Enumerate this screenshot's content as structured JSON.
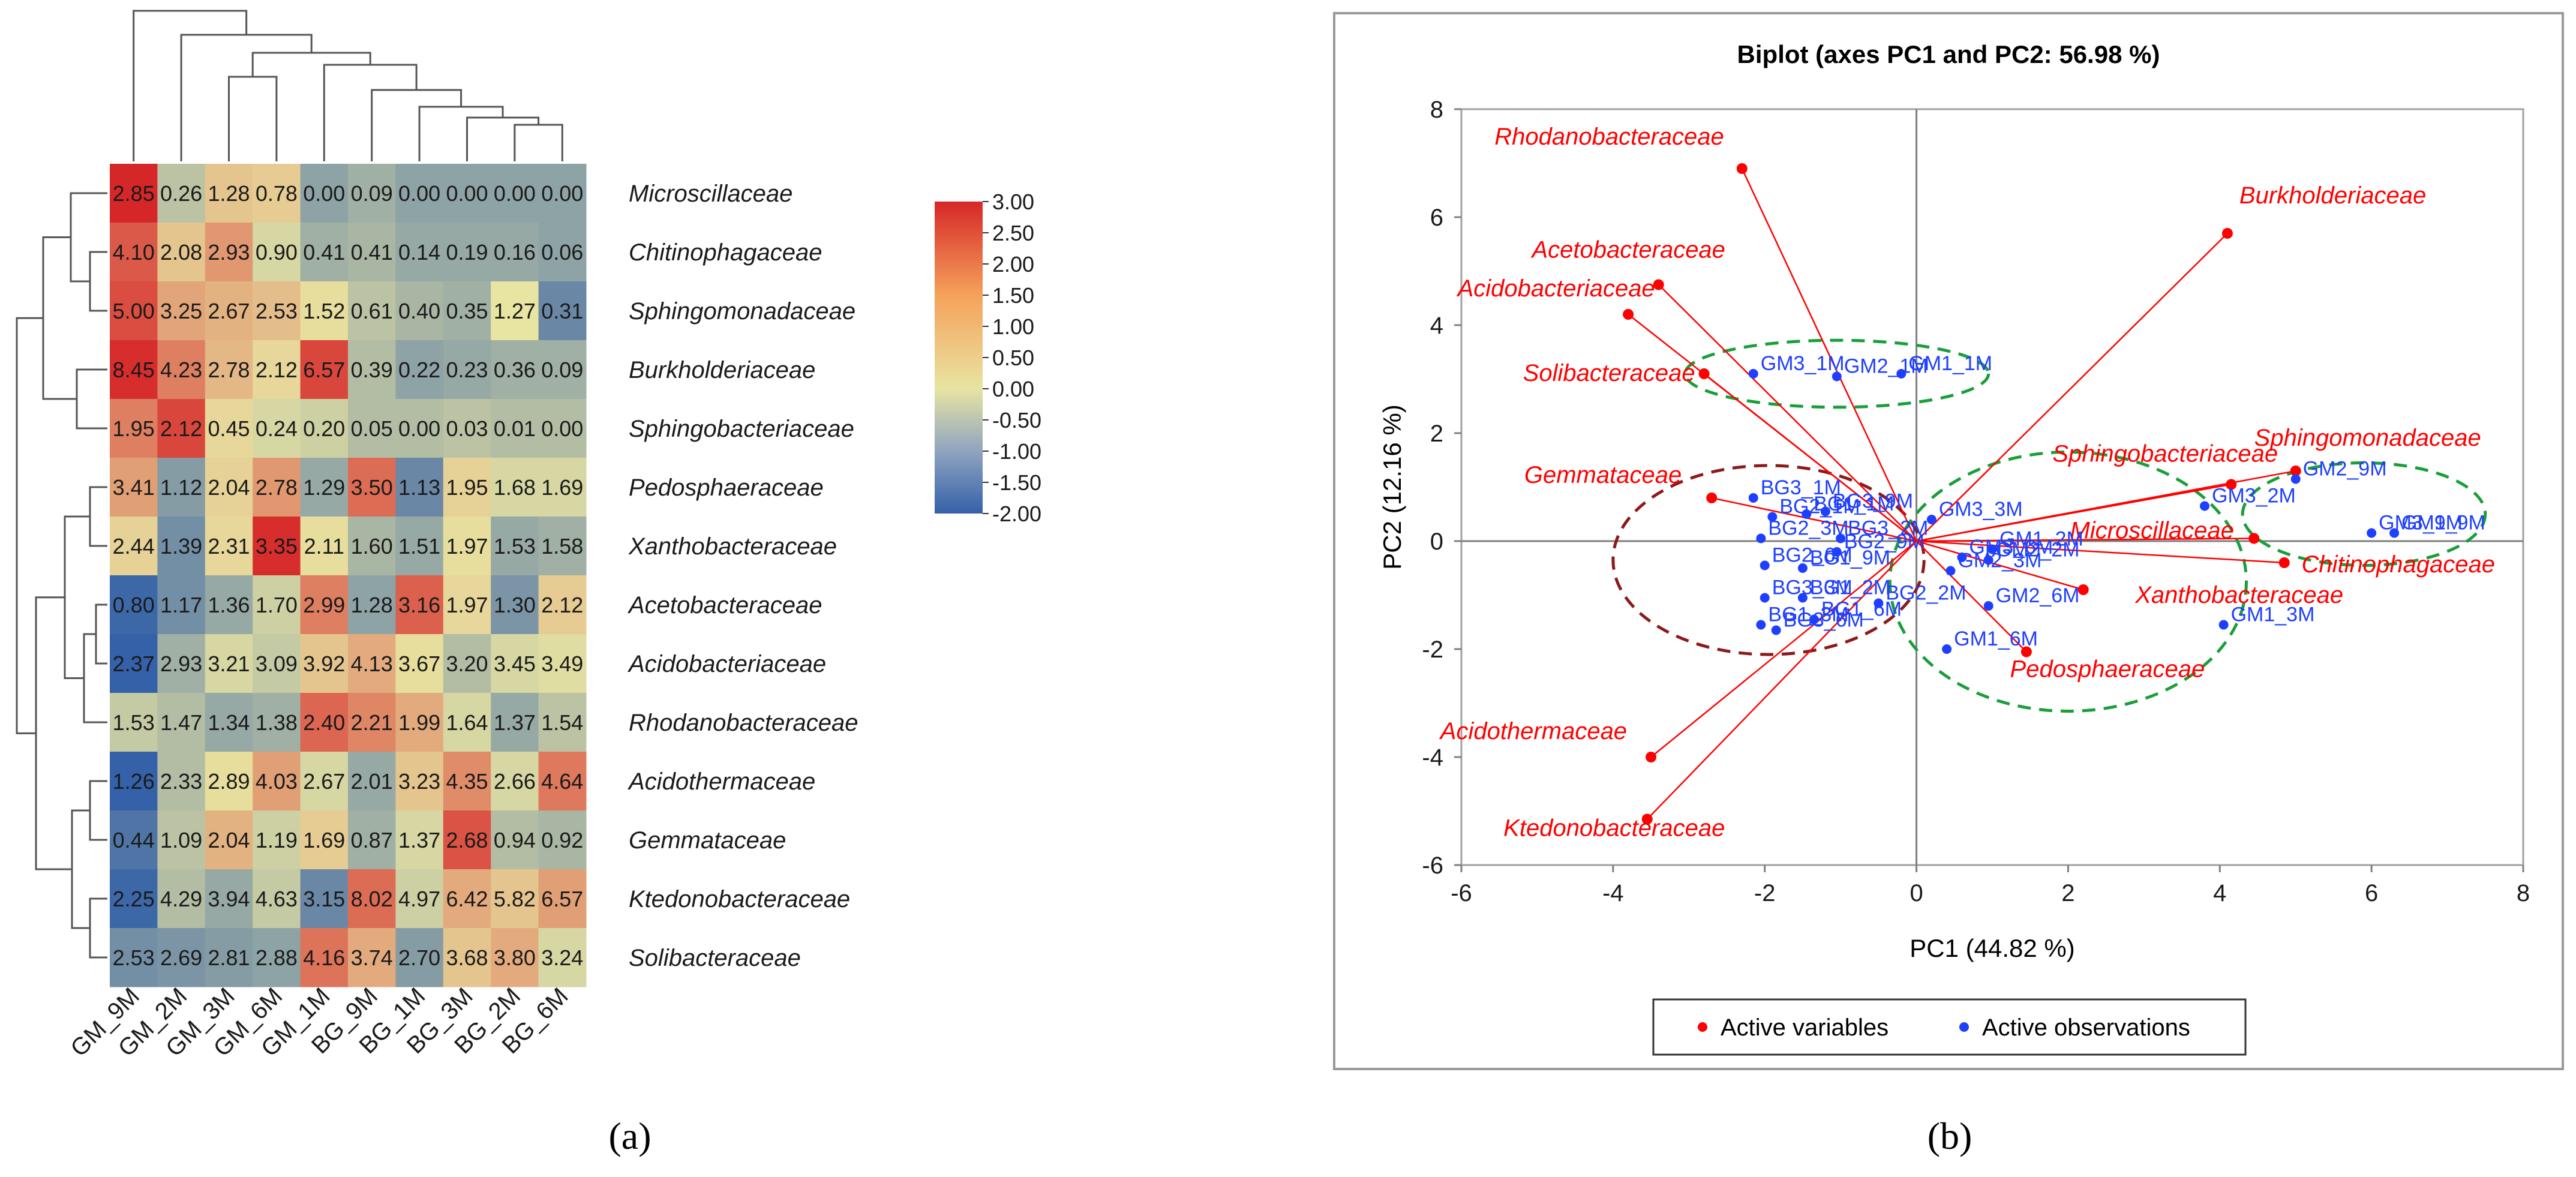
{
  "panel_labels": {
    "a": "(a)",
    "b": "(b)"
  },
  "colors": {
    "active_variable": "#ff0000",
    "active_observation": "#1f3fff",
    "green_ellipse": "#1a9e3a",
    "brown_ellipse": "#8b1a1a"
  },
  "chart_data": [
    {
      "type": "heatmap",
      "columns": [
        "GM_9M",
        "GM_2M",
        "GM_3M",
        "GM_6M",
        "GM_1M",
        "BG_9M",
        "BG_1M",
        "BG_3M",
        "BG_2M",
        "BG_6M"
      ],
      "rows": [
        "Microscillaceae",
        "Chitinophagaceae",
        "Sphingomonadaceae",
        "Burkholderiaceae",
        "Sphingobacteriaceae",
        "Pedosphaeraceae",
        "Xanthobacteraceae",
        "Acetobacteraceae",
        "Acidobacteriaceae",
        "Rhodanobacteraceae",
        "Acidothermaceae",
        "Gemmataceae",
        "Ktedonobacteraceae",
        "Solibacteraceae"
      ],
      "values": [
        [
          2.85,
          0.26,
          1.28,
          0.78,
          0.0,
          0.09,
          0.0,
          0.0,
          0.0,
          0.0
        ],
        [
          4.1,
          2.08,
          2.93,
          0.9,
          0.41,
          0.41,
          0.14,
          0.19,
          0.16,
          0.06
        ],
        [
          5.0,
          3.25,
          2.67,
          2.53,
          1.52,
          0.61,
          0.4,
          0.35,
          1.27,
          0.31
        ],
        [
          8.45,
          4.23,
          2.78,
          2.12,
          6.57,
          0.39,
          0.22,
          0.23,
          0.36,
          0.09
        ],
        [
          1.95,
          2.12,
          0.45,
          0.24,
          0.2,
          0.05,
          0.0,
          0.03,
          0.01,
          0.0
        ],
        [
          3.41,
          1.12,
          2.04,
          2.78,
          1.29,
          3.5,
          1.13,
          1.95,
          1.68,
          1.69
        ],
        [
          2.44,
          1.39,
          2.31,
          3.35,
          2.11,
          1.6,
          1.51,
          1.97,
          1.53,
          1.58
        ],
        [
          0.8,
          1.17,
          1.36,
          1.7,
          2.99,
          1.28,
          3.16,
          1.97,
          1.3,
          2.12
        ],
        [
          2.37,
          2.93,
          3.21,
          3.09,
          3.92,
          4.13,
          3.67,
          3.2,
          3.45,
          3.49
        ],
        [
          1.53,
          1.47,
          1.34,
          1.38,
          2.4,
          2.21,
          1.99,
          1.64,
          1.37,
          1.54
        ],
        [
          1.26,
          2.33,
          2.89,
          4.03,
          2.67,
          2.01,
          3.23,
          4.35,
          2.66,
          4.64
        ],
        [
          0.44,
          1.09,
          2.04,
          1.19,
          1.69,
          0.87,
          1.37,
          2.68,
          0.94,
          0.92
        ],
        [
          2.25,
          4.29,
          3.94,
          4.63,
          3.15,
          8.02,
          4.97,
          6.42,
          5.82,
          6.57
        ],
        [
          2.53,
          2.69,
          2.81,
          2.88,
          4.16,
          3.74,
          2.7,
          3.68,
          3.8,
          3.24
        ]
      ],
      "cell_colors": [
        [
          3.0,
          -0.5,
          0.5,
          0.4,
          -1.0,
          -0.8,
          -1.0,
          -1.0,
          -1.0,
          -1.0
        ],
        [
          2.2,
          0.5,
          1.2,
          -0.2,
          -0.8,
          -0.7,
          -0.9,
          -0.9,
          -0.9,
          -1.0
        ],
        [
          2.4,
          1.0,
          0.8,
          0.6,
          0.1,
          -0.5,
          -0.7,
          -0.8,
          0.0,
          -1.4
        ],
        [
          2.9,
          1.6,
          0.7,
          0.2,
          2.5,
          -0.6,
          -1.0,
          -0.9,
          -0.8,
          -0.8
        ],
        [
          1.6,
          2.5,
          0.2,
          -0.2,
          -0.3,
          -0.6,
          -0.6,
          -0.5,
          -0.6,
          -0.6
        ],
        [
          1.1,
          -1.1,
          0.3,
          1.2,
          -0.9,
          1.9,
          -1.4,
          0.3,
          -0.2,
          -0.2
        ],
        [
          0.3,
          -1.3,
          0.2,
          2.9,
          0.1,
          -0.7,
          -0.9,
          0.1,
          -0.9,
          -0.8
        ],
        [
          -1.9,
          -1.3,
          -0.9,
          -0.3,
          1.6,
          -1.0,
          2.1,
          0.2,
          -1.2,
          0.4
        ],
        [
          -2.0,
          -0.8,
          -0.2,
          -0.4,
          0.5,
          0.9,
          0.1,
          -0.6,
          -0.2,
          -0.1
        ],
        [
          -0.4,
          -0.6,
          -0.9,
          -0.8,
          2.0,
          1.5,
          0.9,
          -0.2,
          -0.9,
          -0.5
        ],
        [
          -2.0,
          -0.6,
          0.1,
          1.1,
          -0.2,
          -0.9,
          0.5,
          1.4,
          -0.2,
          1.7
        ],
        [
          -1.7,
          -0.5,
          0.8,
          -0.3,
          0.4,
          -0.8,
          -0.2,
          2.3,
          -0.6,
          -0.7
        ],
        [
          -1.9,
          -0.6,
          -0.9,
          -0.4,
          -1.4,
          1.9,
          -0.3,
          0.9,
          0.5,
          1.1
        ],
        [
          -1.3,
          -1.2,
          -1.1,
          -1.0,
          1.8,
          0.9,
          -1.1,
          0.5,
          0.9,
          -0.2
        ]
      ],
      "colorbar": {
        "min": -2.0,
        "max": 3.0,
        "ticks": [
          "3.00",
          "2.50",
          "2.00",
          "1.50",
          "1.00",
          "0.50",
          "0.00",
          "-0.50",
          "-1.00",
          "-1.50",
          "-2.00"
        ],
        "colors": [
          "#3461a8",
          "#e8e4a2",
          "#d62728"
        ]
      }
    },
    {
      "type": "scatter",
      "title": "Biplot (axes PC1 and PC2: 56.98 %)",
      "xlabel": "PC1 (44.82 %)",
      "ylabel": "PC2 (12.16 %)",
      "xlim": [
        -6,
        8
      ],
      "ylim": [
        -6,
        8
      ],
      "xticks": [
        -6,
        -4,
        -2,
        0,
        2,
        4,
        6,
        8
      ],
      "yticks": [
        -6,
        -4,
        -2,
        0,
        2,
        4,
        6,
        8
      ],
      "legend": {
        "position": "bottom",
        "entries": [
          "Active variables",
          "Active observations"
        ]
      },
      "variables": [
        {
          "label": "Rhodanobacteraceae",
          "x": -2.3,
          "y": 6.9
        },
        {
          "label": "Burkholderiaceae",
          "x": 4.1,
          "y": 5.7
        },
        {
          "label": "Acetobacteraceae",
          "x": -3.4,
          "y": 4.75
        },
        {
          "label": "Acidobacteriaceae",
          "x": -3.8,
          "y": 4.2
        },
        {
          "label": "Solibacteraceae",
          "x": -2.8,
          "y": 3.1
        },
        {
          "label": "Gemmataceae",
          "x": -2.7,
          "y": 0.8
        },
        {
          "label": "Sphingobacteriaceae",
          "x": 4.15,
          "y": 1.05
        },
        {
          "label": "Sphingomonadaceae",
          "x": 5.0,
          "y": 1.3
        },
        {
          "label": "Microscillaceae",
          "x": 4.45,
          "y": 0.05
        },
        {
          "label": "Chitinophagaceae",
          "x": 4.85,
          "y": -0.4
        },
        {
          "label": "Xanthobacteraceae",
          "x": 2.2,
          "y": -0.9
        },
        {
          "label": "Pedosphaeraceae",
          "x": 1.45,
          "y": -2.05
        },
        {
          "label": "Acidothermaceae",
          "x": -3.5,
          "y": -4.0
        },
        {
          "label": "Ktedonobacteraceae",
          "x": -3.55,
          "y": -5.15
        }
      ],
      "observations": [
        {
          "label": "GM3_1M",
          "x": -2.15,
          "y": 3.1
        },
        {
          "label": "GM2_1M",
          "x": -1.05,
          "y": 3.05
        },
        {
          "label": "GM1_1M",
          "x": -0.2,
          "y": 3.1
        },
        {
          "label": "BG1_1M",
          "x": -1.45,
          "y": 0.5
        },
        {
          "label": "BG3_1M",
          "x": -2.15,
          "y": 0.8
        },
        {
          "label": "BG3_9M",
          "x": -1.2,
          "y": 0.55
        },
        {
          "label": "GM3_3M",
          "x": 0.2,
          "y": 0.4
        },
        {
          "label": "BG2_1M",
          "x": -1.9,
          "y": 0.45
        },
        {
          "label": "BG2_3M",
          "x": -2.05,
          "y": 0.05
        },
        {
          "label": "BG3_2M",
          "x": -1.0,
          "y": 0.05
        },
        {
          "label": "BG2_9M",
          "x": -1.05,
          "y": -0.2
        },
        {
          "label": "BG2_6M",
          "x": -2.0,
          "y": -0.45
        },
        {
          "label": "BG1_9M",
          "x": -1.5,
          "y": -0.5
        },
        {
          "label": "GM3_6M",
          "x": 0.6,
          "y": -0.3
        },
        {
          "label": "GM1_2M",
          "x": 1.0,
          "y": -0.15
        },
        {
          "label": "GM2_2M",
          "x": 0.95,
          "y": -0.35
        },
        {
          "label": "GM2_3M",
          "x": 0.45,
          "y": -0.55
        },
        {
          "label": "BG1_2M",
          "x": -1.5,
          "y": -1.05
        },
        {
          "label": "BG3_3M",
          "x": -2.0,
          "y": -1.05
        },
        {
          "label": "BG2_2M",
          "x": -0.5,
          "y": -1.15
        },
        {
          "label": "BG1_6M",
          "x": -1.35,
          "y": -1.45
        },
        {
          "label": "BG1_3M",
          "x": -2.05,
          "y": -1.55
        },
        {
          "label": "BG3_6M",
          "x": -1.85,
          "y": -1.65
        },
        {
          "label": "GM2_6M",
          "x": 0.95,
          "y": -1.2
        },
        {
          "label": "GM1_3M",
          "x": 4.05,
          "y": -1.55
        },
        {
          "label": "GM1_6M",
          "x": 0.4,
          "y": -2.0
        },
        {
          "label": "GM3_2M",
          "x": 3.8,
          "y": 0.65
        },
        {
          "label": "GM2_9M",
          "x": 5.0,
          "y": 1.15
        },
        {
          "label": "GM3_9M",
          "x": 6.0,
          "y": 0.15
        },
        {
          "label": "GM1_9M",
          "x": 6.3,
          "y": 0.15
        }
      ]
    }
  ]
}
